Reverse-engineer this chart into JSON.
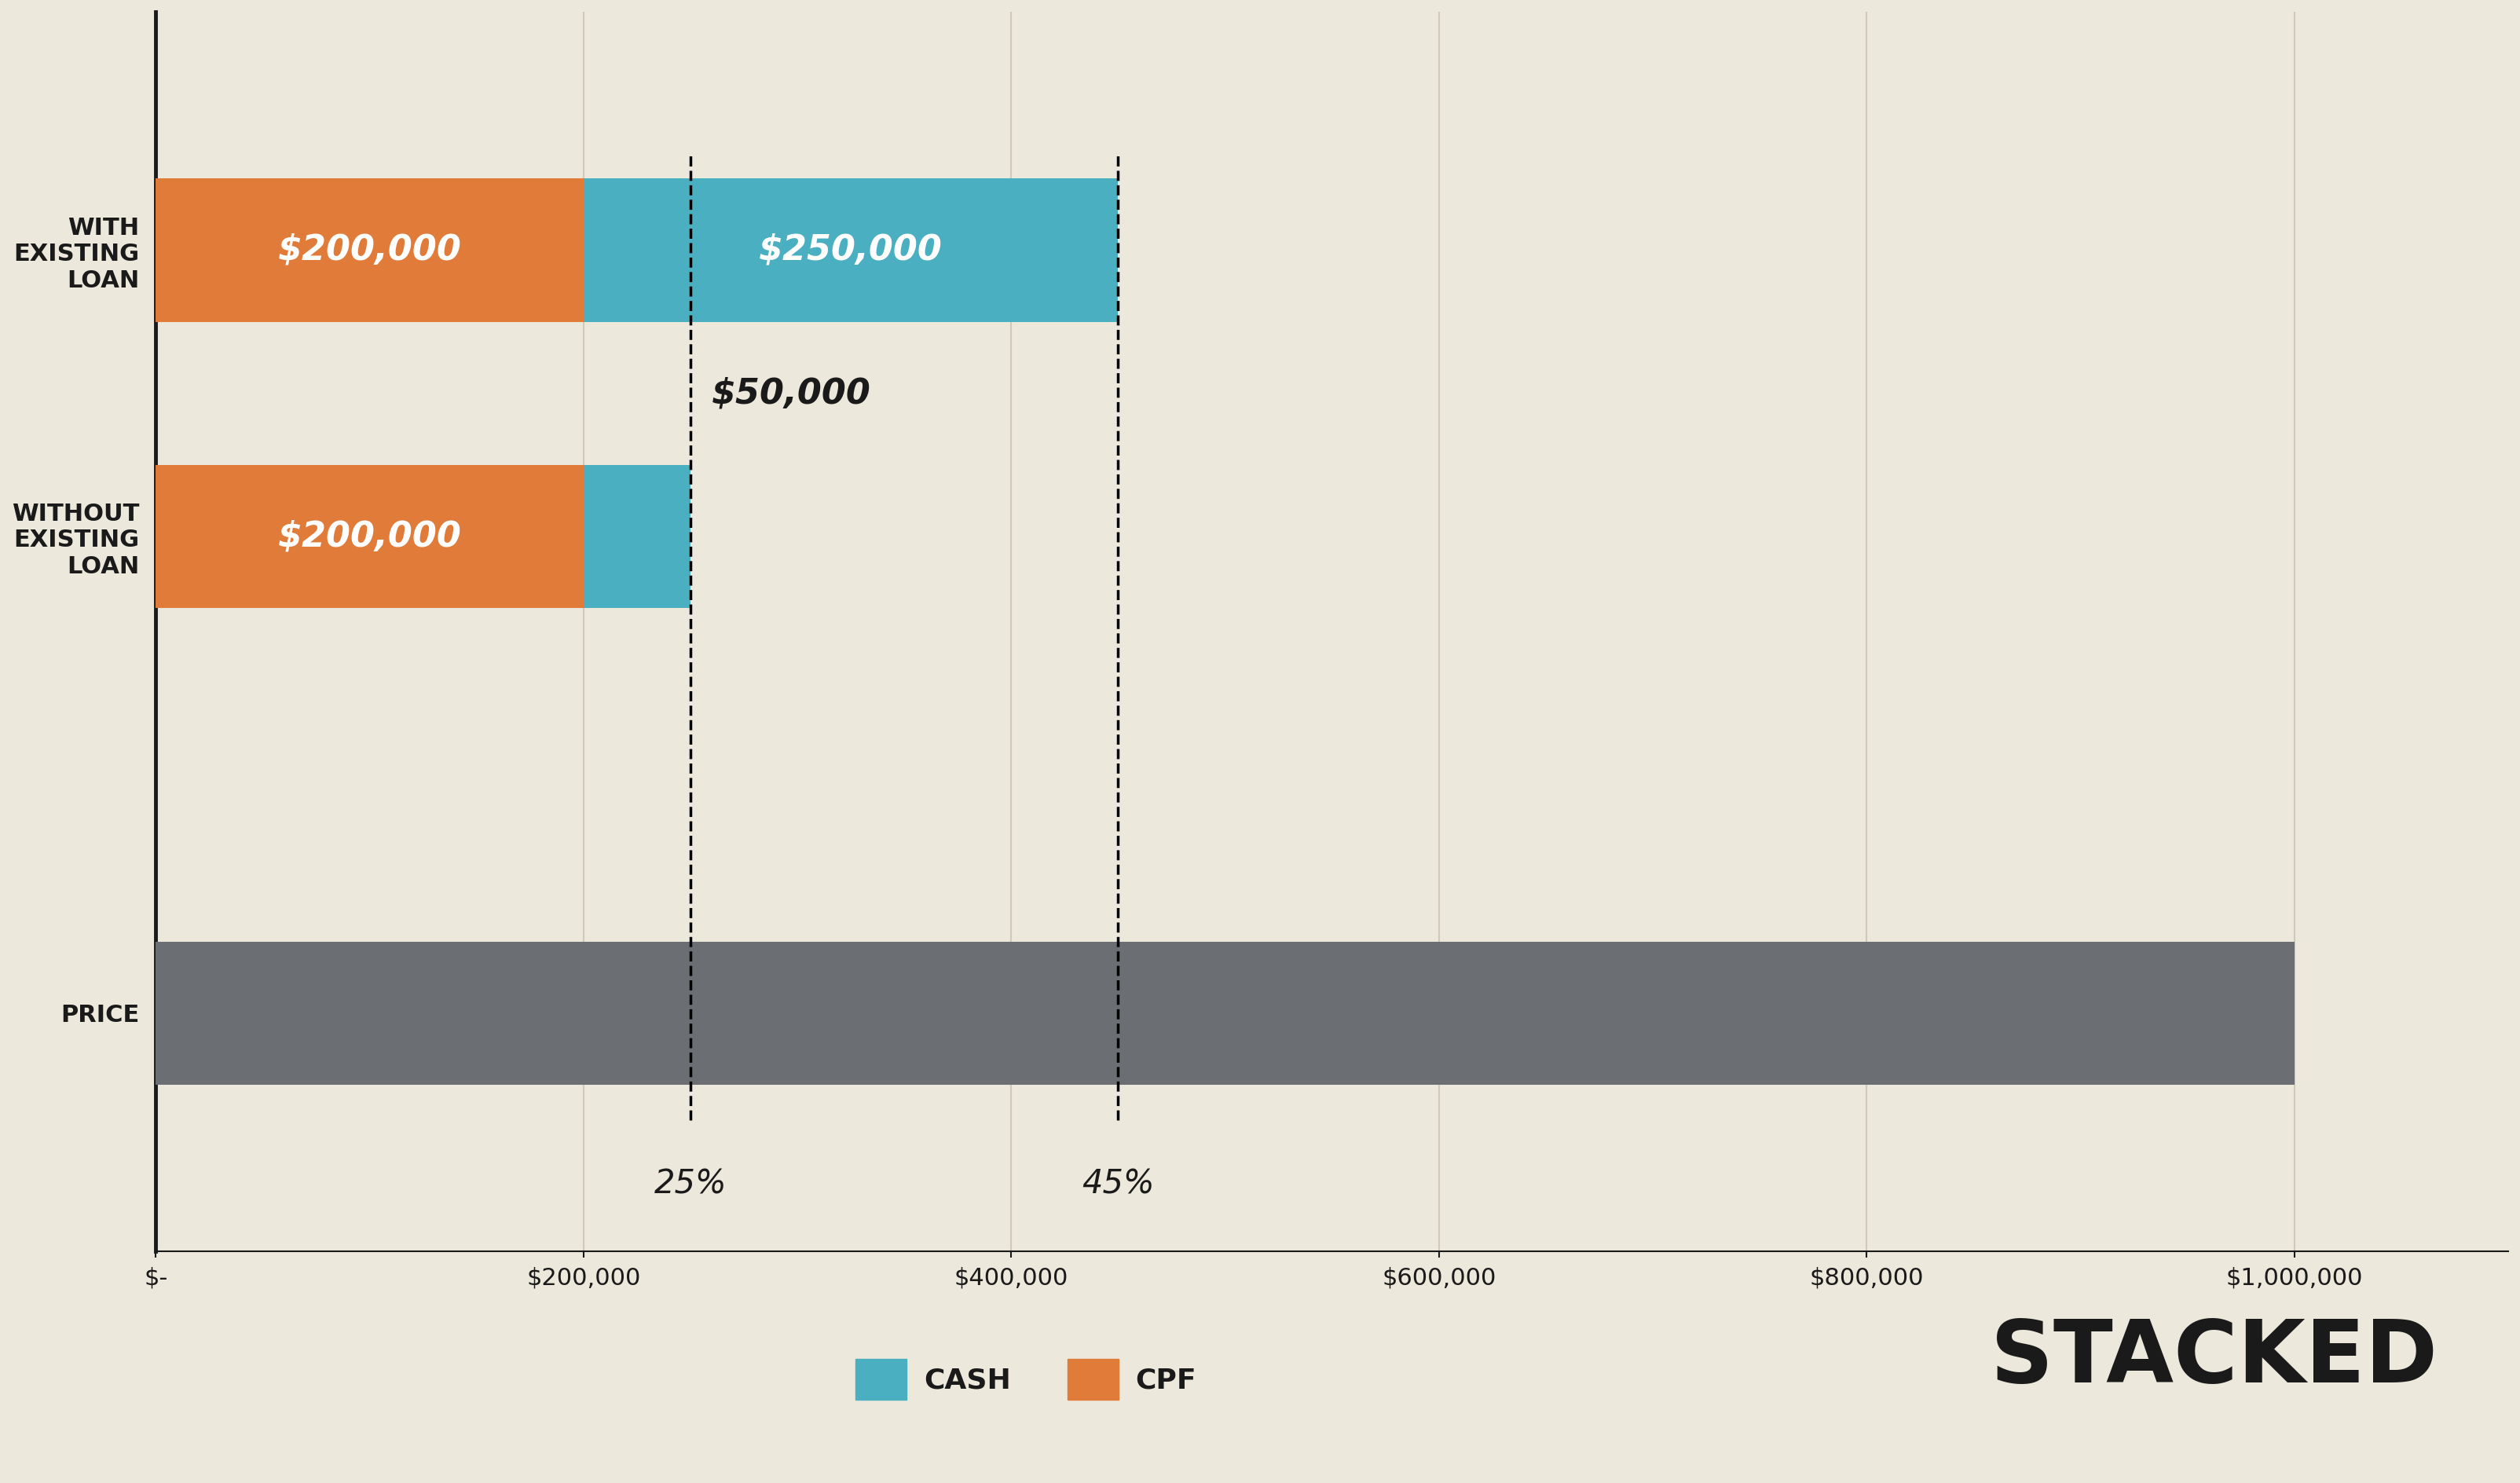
{
  "background_color": "#EDE8DC",
  "categories": [
    "PRICE",
    "WITHOUT\nEXISTING\nLOAN",
    "WITH\nEXISTING\nLOAN"
  ],
  "cpf_values": [
    0,
    200000,
    200000
  ],
  "cash_values": [
    1000000,
    50000,
    250000
  ],
  "price_value": 1000000,
  "bar_colors_cpf": "#E07B39",
  "bar_colors_cash": "#4AAFC0",
  "bar_colors_price": "#6B6E72",
  "dashed_lines": [
    250000,
    450000
  ],
  "dashed_labels": [
    "25%",
    "45%"
  ],
  "annotations_with": {
    "cpf": "$200,000",
    "cash": "$250,000"
  },
  "annotations_without": {
    "cpf": "$200,000",
    "cash": "$50,000"
  },
  "xlim": [
    0,
    1100000
  ],
  "xticks": [
    0,
    200000,
    400000,
    600000,
    800000,
    1000000
  ],
  "xticklabels": [
    "$-",
    "$200,000",
    "$400,000",
    "$600,000",
    "$800,000",
    "$1,000,000"
  ],
  "legend_cash_label": "CASH",
  "legend_cpf_label": "CPF",
  "stacked_label": "STACKED",
  "bar_height": 0.6,
  "annotation_fontsize": 32,
  "ylabel_fontsize": 22,
  "xlabel_fontsize": 22,
  "dashed_label_fontsize": 30,
  "legend_fontsize": 26,
  "stacked_fontsize": 80,
  "axis_color": "#1a1a1a",
  "grid_color": "#D0C8BA"
}
